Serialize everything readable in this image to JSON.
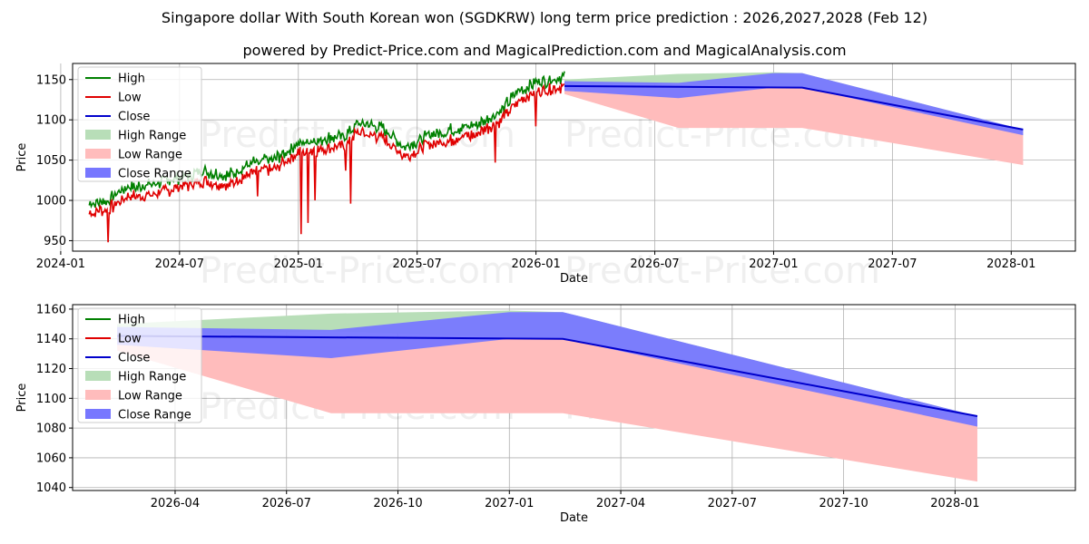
{
  "title": "Singapore dollar With South Korean won (SGDKRW) long term price prediction : 2026,2027,2028 (Feb 12)",
  "subtitle": "powered by Predict-Price.com and MagicalPrediction.com and MagicalAnalysis.com",
  "watermark": "Predict-Price.com",
  "colors": {
    "high": "#008000",
    "low": "#e00000",
    "close": "#0000cc",
    "high_range": "#b8deb8",
    "low_range": "#ffbcbc",
    "close_range": "#7777ff"
  },
  "chart_data": [
    {
      "type": "line",
      "name": "top-panel",
      "xlabel": "Date",
      "ylabel": "Price",
      "xlim": [
        2024.05,
        2028.27
      ],
      "ylim": [
        937,
        1170
      ],
      "x_ticks": [
        {
          "v": 2024.0,
          "label": "2024-01"
        },
        {
          "v": 2024.5,
          "label": "2024-07"
        },
        {
          "v": 2025.0,
          "label": "2025-01"
        },
        {
          "v": 2025.5,
          "label": "2025-07"
        },
        {
          "v": 2026.0,
          "label": "2026-01"
        },
        {
          "v": 2026.5,
          "label": "2026-07"
        },
        {
          "v": 2027.0,
          "label": "2027-01"
        },
        {
          "v": 2027.5,
          "label": "2027-07"
        },
        {
          "v": 2028.0,
          "label": "2028-01"
        }
      ],
      "y_ticks": [
        950,
        1000,
        1050,
        1100,
        1150
      ],
      "grid": true,
      "legend": [
        "High",
        "Low",
        "Close",
        "High Range",
        "Low Range",
        "Close Range"
      ],
      "legend_position": "top-left",
      "history_anchors": [
        [
          2024.12,
          990
        ],
        [
          2024.2,
          995
        ],
        [
          2024.28,
          1010
        ],
        [
          2024.4,
          1015
        ],
        [
          2024.5,
          1022
        ],
        [
          2024.6,
          1030
        ],
        [
          2024.7,
          1025
        ],
        [
          2024.8,
          1040
        ],
        [
          2024.9,
          1045
        ],
        [
          2025.0,
          1065
        ],
        [
          2025.1,
          1070
        ],
        [
          2025.2,
          1075
        ],
        [
          2025.25,
          1090
        ],
        [
          2025.35,
          1085
        ],
        [
          2025.45,
          1060
        ],
        [
          2025.55,
          1075
        ],
        [
          2025.65,
          1082
        ],
        [
          2025.75,
          1088
        ],
        [
          2025.85,
          1105
        ],
        [
          2025.92,
          1128
        ],
        [
          2026.0,
          1140
        ],
        [
          2026.08,
          1145
        ],
        [
          2026.12,
          1148
        ]
      ],
      "high_offset": 6,
      "low_offset": -6,
      "low_spikes": [
        [
          2024.2,
          948
        ],
        [
          2024.35,
          1000
        ],
        [
          2024.83,
          1005
        ],
        [
          2025.01,
          958
        ],
        [
          2025.04,
          972
        ],
        [
          2025.07,
          1000
        ],
        [
          2025.2,
          1037
        ],
        [
          2025.22,
          996
        ],
        [
          2025.83,
          1047
        ],
        [
          2026.0,
          1092
        ]
      ],
      "high_range": {
        "x": [
          2026.12,
          2026.6,
          2027.0,
          2027.12,
          2028.05
        ],
        "upper": [
          1150,
          1157,
          1159,
          1158,
          1088
        ],
        "lower": [
          1142,
          1145,
          1141,
          1140,
          1086
        ]
      },
      "low_range": {
        "x": [
          2026.12,
          2026.6,
          2027.0,
          2027.12,
          2028.05
        ],
        "upper": [
          1142,
          1141,
          1141,
          1140,
          1086
        ],
        "lower": [
          1132,
          1090,
          1090,
          1090,
          1044
        ]
      },
      "close_range": {
        "x": [
          2026.12,
          2026.6,
          2027.0,
          2027.12,
          2028.05
        ],
        "upper": [
          1148,
          1146,
          1158,
          1158,
          1088
        ],
        "lower": [
          1136,
          1127,
          1140,
          1140,
          1081
        ]
      },
      "close_forecast": {
        "x": [
          2026.12,
          2026.6,
          2027.12,
          2028.05
        ],
        "y": [
          1142,
          1141,
          1140,
          1088
        ]
      }
    },
    {
      "type": "line",
      "name": "bottom-panel",
      "xlabel": "Date",
      "ylabel": "Price",
      "xlim": [
        2026.02,
        2028.27
      ],
      "ylim": [
        1038,
        1163
      ],
      "x_ticks": [
        {
          "v": 2026.25,
          "label": "2026-04"
        },
        {
          "v": 2026.5,
          "label": "2026-07"
        },
        {
          "v": 2026.75,
          "label": "2026-10"
        },
        {
          "v": 2027.0,
          "label": "2027-01"
        },
        {
          "v": 2027.25,
          "label": "2027-04"
        },
        {
          "v": 2027.5,
          "label": "2027-07"
        },
        {
          "v": 2027.75,
          "label": "2027-10"
        },
        {
          "v": 2028.0,
          "label": "2028-01"
        }
      ],
      "y_ticks": [
        1040,
        1060,
        1080,
        1100,
        1120,
        1140,
        1160
      ],
      "grid": true,
      "legend": [
        "High",
        "Low",
        "Close",
        "High Range",
        "Low Range",
        "Close Range"
      ],
      "legend_position": "top-left",
      "high_range": {
        "x": [
          2026.12,
          2026.6,
          2027.0,
          2027.12,
          2028.05
        ],
        "upper": [
          1150,
          1157,
          1159,
          1158,
          1088
        ],
        "lower": [
          1142,
          1145,
          1141,
          1140,
          1086
        ]
      },
      "low_range": {
        "x": [
          2026.12,
          2026.6,
          2027.0,
          2027.12,
          2028.05
        ],
        "upper": [
          1142,
          1141,
          1141,
          1140,
          1086
        ],
        "lower": [
          1132,
          1090,
          1090,
          1090,
          1044
        ]
      },
      "close_range": {
        "x": [
          2026.12,
          2026.6,
          2027.0,
          2027.12,
          2028.05
        ],
        "upper": [
          1148,
          1146,
          1158,
          1158,
          1088
        ],
        "lower": [
          1136,
          1127,
          1140,
          1140,
          1081
        ]
      },
      "close_forecast": {
        "x": [
          2026.12,
          2026.6,
          2027.12,
          2028.05
        ],
        "y": [
          1142,
          1141,
          1140,
          1088
        ]
      }
    }
  ]
}
